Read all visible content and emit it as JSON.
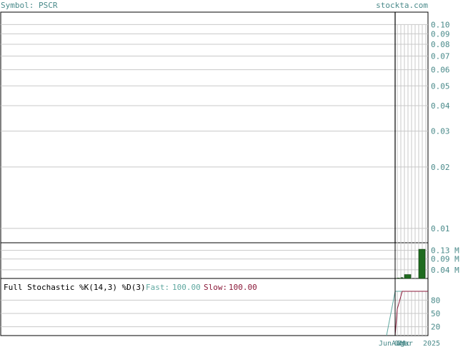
{
  "header": {
    "symbol_label": "Symbol: PSCR",
    "site": "stockta.com"
  },
  "colors": {
    "grid": "#c8c8c8",
    "axis_text": "#4a8a8a",
    "volume_bar": "#1f6b1f",
    "fast_line": "#5fa8a0",
    "slow_line": "#8b1a3a",
    "border": "#000000"
  },
  "chart_data": [
    {
      "type": "line",
      "panel": "price",
      "scale": "log",
      "ylim": [
        0.0085,
        0.115
      ],
      "yticks": [
        "0.10",
        "0.09",
        "0.08",
        "0.07",
        "0.06",
        "0.05",
        "0.04",
        "0.03",
        "0.02",
        "0.01"
      ],
      "ytick_values": [
        0.1,
        0.09,
        0.08,
        0.07,
        0.06,
        0.05,
        0.04,
        0.03,
        0.02,
        0.01
      ],
      "grid": true
    },
    {
      "type": "bar",
      "panel": "volume",
      "ylim": [
        0,
        0.165
      ],
      "yticks": [
        "0.13 M",
        "0.09 M",
        "0.04 M"
      ],
      "ytick_values": [
        0.13,
        0.09,
        0.04
      ],
      "values": [
        0.002,
        0.004,
        0.018,
        0.0,
        0.135
      ],
      "grid": true
    },
    {
      "type": "line",
      "panel": "stochastic",
      "title": "Full Stochastic %K(14,3) %D(3)",
      "fast_label": "Fast:",
      "fast_value": "100.00",
      "slow_label": "Slow:",
      "slow_value": "100.00",
      "ylim": [
        0,
        100
      ],
      "yticks": [
        "80",
        "50",
        "20"
      ],
      "ytick_values": [
        80,
        50,
        20
      ],
      "fast": [
        0,
        100,
        100,
        100,
        100,
        100,
        100
      ],
      "slow": [
        0,
        60,
        100,
        100,
        100,
        100,
        100
      ],
      "grid": true
    },
    {
      "type": "table",
      "panel": "x-axis",
      "xlabels": [
        "Jun",
        "Aug",
        "Oct",
        "Dec",
        "Mar",
        "2025"
      ]
    }
  ]
}
